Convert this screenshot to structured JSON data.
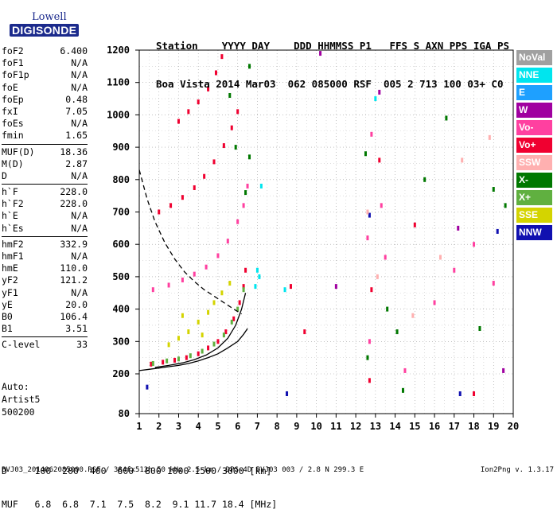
{
  "logo": {
    "line1": "Lowell",
    "line2": "DIGISONDE"
  },
  "header": {
    "line1": "Station    YYYY DAY    DDD HHMMSS P1   FFS S AXN PPS IGA PS",
    "line2": "Boa Vista 2014 Mar03  062 085000 RSF  005 2 713 100 03+ C0"
  },
  "params_groups": [
    [
      {
        "label": "foF2",
        "value": "6.400"
      },
      {
        "label": "foF1",
        "value": "N/A"
      },
      {
        "label": "foF1p",
        "value": "N/A"
      },
      {
        "label": "foE",
        "value": "N/A"
      },
      {
        "label": "foEp",
        "value": "0.48"
      },
      {
        "label": "fxI",
        "value": "7.05"
      },
      {
        "label": "foEs",
        "value": "N/A"
      },
      {
        "label": "fmin",
        "value": "1.65"
      }
    ],
    [
      {
        "label": "MUF(D)",
        "value": "18.36"
      },
      {
        "label": "M(D)",
        "value": "2.87"
      },
      {
        "label": "D",
        "value": "N/A"
      }
    ],
    [
      {
        "label": "h`F",
        "value": "228.0"
      },
      {
        "label": "h`F2",
        "value": "228.0"
      },
      {
        "label": "h`E",
        "value": "N/A"
      },
      {
        "label": "h`Es",
        "value": "N/A"
      }
    ],
    [
      {
        "label": "hmF2",
        "value": "332.9"
      },
      {
        "label": "hmF1",
        "value": "N/A"
      },
      {
        "label": "hmE",
        "value": "110.0"
      },
      {
        "label": "yF2",
        "value": "121.2"
      },
      {
        "label": "yF1",
        "value": "N/A"
      },
      {
        "label": "yE",
        "value": "20.0"
      },
      {
        "label": "B0",
        "value": "106.4"
      },
      {
        "label": "B1",
        "value": "3.51"
      }
    ],
    [
      {
        "label": "C-level",
        "value": "33"
      }
    ]
  ],
  "auto": {
    "line1": "Auto:",
    "line2": "Artist5",
    "line3": "500200"
  },
  "muf_table": {
    "line1": "D     100  200  400  600  800 1000 1500 3000 [km]",
    "line2": "MUF   6.8  6.8  7.1  7.5  8.2  9.1 11.7 18.4 [MHz]"
  },
  "footer": {
    "left": "BVJ03_2014062085000.RSF / 384fx512h 50 kHz 2.5 km / DPS-4D BVJ03 003 / 2.8 N 299.3 E",
    "right": "Ion2Png v. 1.3.17"
  },
  "legend": [
    {
      "label": "NoVal",
      "color": "#a0a0a0"
    },
    {
      "label": "NNE",
      "color": "#00e5ee"
    },
    {
      "label": "E",
      "color": "#1ea0ff"
    },
    {
      "label": "W",
      "color": "#a000a0"
    },
    {
      "label": "Vo-",
      "color": "#ff40a0"
    },
    {
      "label": "Vo+",
      "color": "#f00030"
    },
    {
      "label": "SSW",
      "color": "#ffb0b0"
    },
    {
      "label": "X-",
      "color": "#007800"
    },
    {
      "label": "X+",
      "color": "#60b040"
    },
    {
      "label": "SSE",
      "color": "#d4d400"
    },
    {
      "label": "NNW",
      "color": "#1010b0"
    }
  ],
  "chart_data": {
    "type": "scatter",
    "xlabel": "",
    "ylabel": "",
    "xlim": [
      1,
      20
    ],
    "ylim": [
      80,
      1200
    ],
    "x_ticks": [
      1,
      2,
      3,
      4,
      5,
      6,
      7,
      8,
      9,
      10,
      11,
      12,
      13,
      14,
      15,
      16,
      17,
      18,
      19,
      20
    ],
    "y_ticks": [
      80,
      200,
      300,
      400,
      500,
      600,
      700,
      800,
      900,
      1000,
      1100,
      1200
    ],
    "grid": true,
    "legend_position": "right",
    "series": [
      {
        "color": "#f00030",
        "points": [
          [
            1.6,
            230
          ],
          [
            2.2,
            236
          ],
          [
            2.8,
            242
          ],
          [
            3.4,
            250
          ],
          [
            4.0,
            262
          ],
          [
            4.5,
            280
          ],
          [
            5.0,
            300
          ],
          [
            5.4,
            330
          ],
          [
            5.8,
            370
          ],
          [
            6.1,
            420
          ],
          [
            6.3,
            470
          ],
          [
            6.4,
            520
          ]
        ]
      },
      {
        "color": "#60b040",
        "points": [
          [
            1.7,
            232
          ],
          [
            2.4,
            240
          ],
          [
            3.0,
            246
          ],
          [
            3.6,
            256
          ],
          [
            4.2,
            270
          ],
          [
            4.8,
            292
          ],
          [
            5.3,
            320
          ],
          [
            5.7,
            360
          ],
          [
            6.0,
            400
          ],
          [
            6.3,
            460
          ]
        ]
      },
      {
        "color": "#d4d400",
        "points": [
          [
            2.5,
            290
          ],
          [
            3.0,
            310
          ],
          [
            3.5,
            330
          ],
          [
            4.0,
            360
          ],
          [
            4.5,
            390
          ],
          [
            4.8,
            420
          ],
          [
            5.2,
            450
          ],
          [
            5.6,
            480
          ],
          [
            3.2,
            380
          ],
          [
            4.2,
            320
          ]
        ]
      },
      {
        "color": "#ff40a0",
        "points": [
          [
            1.7,
            460
          ],
          [
            2.5,
            474
          ],
          [
            3.2,
            490
          ],
          [
            3.8,
            508
          ],
          [
            4.4,
            530
          ],
          [
            5.0,
            565
          ],
          [
            5.5,
            610
          ],
          [
            6.0,
            670
          ],
          [
            6.3,
            720
          ],
          [
            6.5,
            780
          ]
        ]
      },
      {
        "color": "#007800",
        "points": [
          [
            6.6,
            870
          ],
          [
            6.6,
            1150
          ],
          [
            5.6,
            1060
          ],
          [
            5.9,
            900
          ],
          [
            6.4,
            760
          ]
        ]
      },
      {
        "color": "#f00030",
        "points": [
          [
            2.0,
            700
          ],
          [
            2.6,
            720
          ],
          [
            3.2,
            745
          ],
          [
            3.8,
            775
          ],
          [
            4.3,
            810
          ],
          [
            4.8,
            855
          ],
          [
            5.3,
            905
          ],
          [
            5.7,
            960
          ],
          [
            6.0,
            1010
          ]
        ]
      },
      {
        "color": "#f00030",
        "points": [
          [
            3.0,
            980
          ],
          [
            3.5,
            1010
          ],
          [
            4.0,
            1040
          ],
          [
            4.5,
            1080
          ],
          [
            4.9,
            1130
          ],
          [
            5.2,
            1180
          ]
        ]
      },
      {
        "color": "#00e5ee",
        "points": [
          [
            6.9,
            470
          ],
          [
            7.1,
            500
          ],
          [
            7.0,
            520
          ],
          [
            7.2,
            780
          ],
          [
            13.0,
            1050
          ],
          [
            8.4,
            460
          ]
        ]
      },
      {
        "color": "#1010b0",
        "points": [
          [
            1.4,
            160
          ],
          [
            8.5,
            140
          ],
          [
            19.2,
            640
          ],
          [
            17.3,
            140
          ],
          [
            12.7,
            690
          ]
        ]
      },
      {
        "color": "#a000a0",
        "points": [
          [
            11.0,
            470
          ],
          [
            13.2,
            1070
          ],
          [
            19.5,
            210
          ],
          [
            17.2,
            650
          ],
          [
            10.2,
            1190
          ]
        ]
      },
      {
        "color": "#007800",
        "points": [
          [
            12.6,
            250
          ],
          [
            13.6,
            400
          ],
          [
            14.1,
            330
          ],
          [
            15.5,
            800
          ],
          [
            16.6,
            990
          ],
          [
            18.3,
            340
          ],
          [
            19.6,
            720
          ],
          [
            19.0,
            770
          ],
          [
            14.4,
            150
          ],
          [
            12.5,
            880
          ]
        ]
      },
      {
        "color": "#ff40a0",
        "points": [
          [
            12.7,
            300
          ],
          [
            13.5,
            560
          ],
          [
            12.6,
            620
          ],
          [
            14.5,
            210
          ],
          [
            16.0,
            420
          ],
          [
            17.0,
            520
          ],
          [
            18.0,
            600
          ],
          [
            19.0,
            480
          ],
          [
            12.8,
            940
          ],
          [
            13.3,
            720
          ]
        ]
      },
      {
        "color": "#ffb0b0",
        "points": [
          [
            12.6,
            700
          ],
          [
            13.1,
            500
          ],
          [
            16.3,
            560
          ],
          [
            17.4,
            860
          ],
          [
            18.8,
            930
          ],
          [
            14.9,
            380
          ]
        ]
      },
      {
        "color": "#f00030",
        "points": [
          [
            8.7,
            470
          ],
          [
            9.4,
            330
          ],
          [
            12.7,
            180
          ],
          [
            12.8,
            460
          ],
          [
            13.2,
            860
          ],
          [
            15.0,
            660
          ],
          [
            18.0,
            140
          ]
        ]
      }
    ],
    "lines": [
      {
        "style": "solid",
        "points": [
          [
            1,
            210
          ],
          [
            1.5,
            214
          ],
          [
            2.0,
            218
          ],
          [
            2.5,
            222
          ],
          [
            3.0,
            226
          ],
          [
            3.5,
            232
          ],
          [
            4.0,
            240
          ],
          [
            4.5,
            250
          ],
          [
            5.0,
            262
          ],
          [
            5.5,
            280
          ],
          [
            6.0,
            300
          ],
          [
            6.3,
            322
          ],
          [
            6.5,
            340
          ]
        ]
      },
      {
        "style": "solid",
        "points": [
          [
            1.8,
            220
          ],
          [
            2.5,
            226
          ],
          [
            3.2,
            234
          ],
          [
            3.8,
            244
          ],
          [
            4.4,
            258
          ],
          [
            5.0,
            280
          ],
          [
            5.5,
            310
          ],
          [
            5.9,
            350
          ],
          [
            6.2,
            400
          ],
          [
            6.4,
            450
          ]
        ]
      },
      {
        "style": "dashed",
        "points": [
          [
            1.0,
            830
          ],
          [
            1.4,
            740
          ],
          [
            1.8,
            670
          ],
          [
            2.3,
            605
          ],
          [
            2.8,
            555
          ],
          [
            3.3,
            515
          ],
          [
            3.8,
            485
          ],
          [
            4.3,
            460
          ],
          [
            4.8,
            440
          ],
          [
            5.3,
            420
          ],
          [
            5.8,
            400
          ],
          [
            6.2,
            385
          ]
        ]
      }
    ]
  }
}
